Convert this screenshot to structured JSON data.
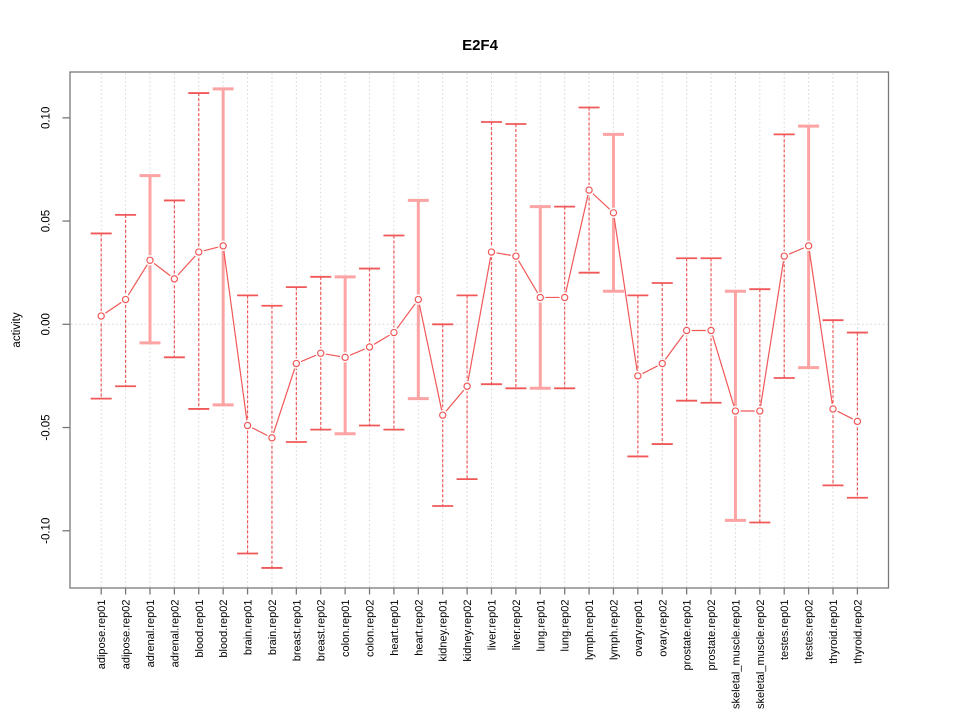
{
  "chart_data": {
    "type": "line",
    "title": "E2F4",
    "ylabel": "activity",
    "xlabel": "",
    "marker": "open-circle",
    "error_bars": true,
    "legend": null,
    "ylim": [
      -0.125,
      0.118
    ],
    "yticks": [
      0.1,
      0.05,
      0.0,
      -0.05,
      -0.1
    ],
    "ytick_labels": [
      "0.10",
      "0.05",
      "0.00",
      "-0.05",
      "-0.10"
    ],
    "grid": {
      "vertical_dotted_per_category": true,
      "dotted_zero_line": true
    },
    "categories": [
      "adipose.rep01",
      "adipose.rep02",
      "adrenal.rep01",
      "adrenal.rep02",
      "blood.rep01",
      "blood.rep02",
      "brain.rep01",
      "brain.rep02",
      "breast.rep01",
      "breast.rep02",
      "colon.rep01",
      "colon.rep02",
      "heart.rep01",
      "heart.rep02",
      "kidney.rep01",
      "kidney.rep02",
      "liver.rep01",
      "liver.rep02",
      "lung.rep01",
      "lung.rep02",
      "lymph.rep01",
      "lymph.rep02",
      "ovary.rep01",
      "ovary.rep02",
      "prostate.rep01",
      "prostate.rep02",
      "skeletal_muscle.rep01",
      "skeletal_muscle.rep02",
      "testes.rep01",
      "testes.rep02",
      "thyroid.rep01",
      "thyroid.rep02"
    ],
    "series": [
      {
        "name": "E2F4",
        "values": [
          0.004,
          0.012,
          0.031,
          0.022,
          0.035,
          0.038,
          -0.049,
          -0.055,
          -0.019,
          -0.014,
          -0.016,
          -0.011,
          -0.004,
          0.012,
          -0.044,
          -0.03,
          0.035,
          0.033,
          0.013,
          0.013,
          0.065,
          0.054,
          -0.025,
          -0.019,
          -0.003,
          -0.003,
          -0.042,
          -0.042,
          0.033,
          0.038,
          -0.041,
          -0.047
        ],
        "upper": [
          0.044,
          0.053,
          0.072,
          0.06,
          0.112,
          0.114,
          0.014,
          0.009,
          0.018,
          0.023,
          0.023,
          0.027,
          0.043,
          0.06,
          0.0,
          0.014,
          0.098,
          0.097,
          0.057,
          0.057,
          0.105,
          0.092,
          0.014,
          0.02,
          0.032,
          0.032,
          0.016,
          0.017,
          0.092,
          0.096,
          0.002,
          -0.004
        ],
        "lower": [
          -0.036,
          -0.03,
          -0.009,
          -0.016,
          -0.041,
          -0.039,
          -0.111,
          -0.118,
          -0.057,
          -0.051,
          -0.053,
          -0.049,
          -0.051,
          -0.036,
          -0.088,
          -0.075,
          -0.029,
          -0.031,
          -0.031,
          -0.031,
          0.025,
          0.016,
          -0.064,
          -0.058,
          -0.037,
          -0.038,
          -0.095,
          -0.096,
          -0.026,
          -0.021,
          -0.078,
          -0.084
        ],
        "bar_style": [
          "thin-dashed",
          "thin-dashed",
          "thick-solid",
          "thin-dashed",
          "thin-dashed",
          "thick-solid",
          "thin-dashed",
          "thin-dashed",
          "thin-dashed",
          "thin-dashed",
          "thick-solid",
          "thin-dashed",
          "thin-dashed",
          "thick-solid",
          "thin-dashed",
          "thin-dashed",
          "thin-dashed",
          "thin-dashed",
          "thick-solid",
          "thin-dashed",
          "thin-dashed",
          "thick-solid",
          "thin-dashed",
          "thin-dashed",
          "thin-dashed",
          "thin-dashed",
          "thick-solid",
          "thin-dashed",
          "thin-dashed",
          "thick-solid",
          "thin-dashed",
          "thin-dashed"
        ]
      }
    ],
    "colors": {
      "line": "#f05858",
      "marker": "#f05858",
      "bar_dark": "#f05858",
      "bar_light": "#fca3a3",
      "grid": "#d6d6d6",
      "axis": "#787878",
      "text": "#000000",
      "background": "#ffffff"
    }
  }
}
